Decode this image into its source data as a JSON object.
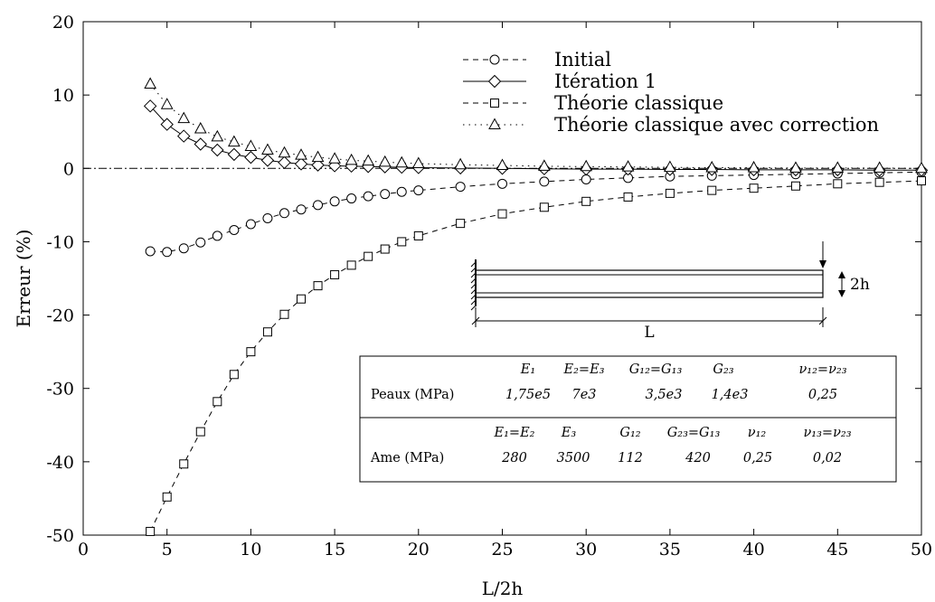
{
  "chart_data": {
    "type": "line",
    "xlabel": "L/2h",
    "ylabel": "Erreur (%)",
    "xlim": [
      0,
      50
    ],
    "ylim": [
      -50,
      20
    ],
    "xticks": [
      0,
      5,
      10,
      15,
      20,
      25,
      30,
      35,
      40,
      45,
      50
    ],
    "yticks": [
      -50,
      -40,
      -30,
      -20,
      -10,
      0,
      10,
      20
    ],
    "legend_position": "top-right",
    "grid": false,
    "series": [
      {
        "name": "Initial",
        "line": "dashed",
        "marker": "circle",
        "x": [
          4,
          5,
          6,
          7,
          8,
          9,
          10,
          11,
          12,
          13,
          14,
          15,
          16,
          17,
          18,
          19,
          20,
          22.5,
          25,
          27.5,
          30,
          32.5,
          35,
          37.5,
          40,
          42.5,
          45,
          47.5,
          50
        ],
        "y": [
          -11.3,
          -11.4,
          -10.9,
          -10.1,
          -9.2,
          -8.4,
          -7.6,
          -6.8,
          -6.1,
          -5.6,
          -5.0,
          -4.5,
          -4.1,
          -3.8,
          -3.5,
          -3.2,
          -3.0,
          -2.5,
          -2.1,
          -1.8,
          -1.5,
          -1.3,
          -1.1,
          -1.0,
          -0.9,
          -0.8,
          -0.7,
          -0.6,
          -0.5
        ]
      },
      {
        "name": "Itération 1",
        "line": "solid",
        "marker": "diamond",
        "x": [
          4,
          5,
          6,
          7,
          8,
          9,
          10,
          11,
          12,
          13,
          14,
          15,
          16,
          17,
          18,
          19,
          20,
          22.5,
          25,
          27.5,
          30,
          32.5,
          35,
          37.5,
          40,
          42.5,
          45,
          47.5,
          50
        ],
        "y": [
          8.5,
          6.0,
          4.4,
          3.3,
          2.5,
          1.9,
          1.5,
          1.1,
          0.8,
          0.6,
          0.45,
          0.35,
          0.3,
          0.25,
          0.2,
          0.15,
          0.1,
          0.05,
          0.0,
          -0.05,
          -0.1,
          -0.1,
          -0.15,
          -0.15,
          -0.2,
          -0.2,
          -0.2,
          -0.25,
          -0.25
        ]
      },
      {
        "name": "Théorie classique",
        "line": "dashed",
        "marker": "square",
        "x": [
          4,
          5,
          6,
          7,
          8,
          9,
          10,
          11,
          12,
          13,
          14,
          15,
          16,
          17,
          18,
          19,
          20,
          22.5,
          25,
          27.5,
          30,
          32.5,
          35,
          37.5,
          40,
          42.5,
          45,
          47.5,
          50
        ],
        "y": [
          -49.5,
          -44.8,
          -40.3,
          -35.9,
          -31.8,
          -28.1,
          -25.0,
          -22.3,
          -19.9,
          -17.8,
          -16.0,
          -14.5,
          -13.2,
          -12.0,
          -11.0,
          -10.0,
          -9.2,
          -7.5,
          -6.2,
          -5.3,
          -4.5,
          -3.9,
          -3.4,
          -3.0,
          -2.7,
          -2.4,
          -2.1,
          -1.9,
          -1.7
        ]
      },
      {
        "name": "Théorie classique avec correction",
        "line": "dotted",
        "marker": "triangle",
        "x": [
          4,
          5,
          6,
          7,
          8,
          9,
          10,
          11,
          12,
          13,
          14,
          15,
          16,
          17,
          18,
          19,
          20,
          22.5,
          25,
          27.5,
          30,
          32.5,
          35,
          37.5,
          40,
          42.5,
          45,
          47.5,
          50
        ],
        "y": [
          11.5,
          8.7,
          6.8,
          5.4,
          4.3,
          3.6,
          3.0,
          2.5,
          2.1,
          1.8,
          1.5,
          1.3,
          1.1,
          1.0,
          0.85,
          0.75,
          0.65,
          0.5,
          0.4,
          0.3,
          0.25,
          0.2,
          0.15,
          0.1,
          0.1,
          0.05,
          0.05,
          0.05,
          0.0
        ]
      }
    ],
    "inset_beam": {
      "length_label": "L",
      "height_label": "2h"
    },
    "properties_table": {
      "rows": [
        {
          "label": "Peaux (MPa)",
          "headers": [
            "E₁",
            "E₂=E₃",
            "G₁₂=G₁₃",
            "G₂₃",
            "ν₁₂=ν₂₃"
          ],
          "values": [
            "1,75e5",
            "7e3",
            "3,5e3",
            "1,4e3",
            "0,25"
          ]
        },
        {
          "label": "Ame (MPa)",
          "headers": [
            "E₁=E₂",
            "E₃",
            "G₁₂",
            "G₂₃=G₁₃",
            "ν₁₂",
            "ν₁₃=ν₂₃"
          ],
          "values": [
            "280",
            "3500",
            "112",
            "420",
            "0,25",
            "0,02"
          ]
        }
      ]
    }
  }
}
